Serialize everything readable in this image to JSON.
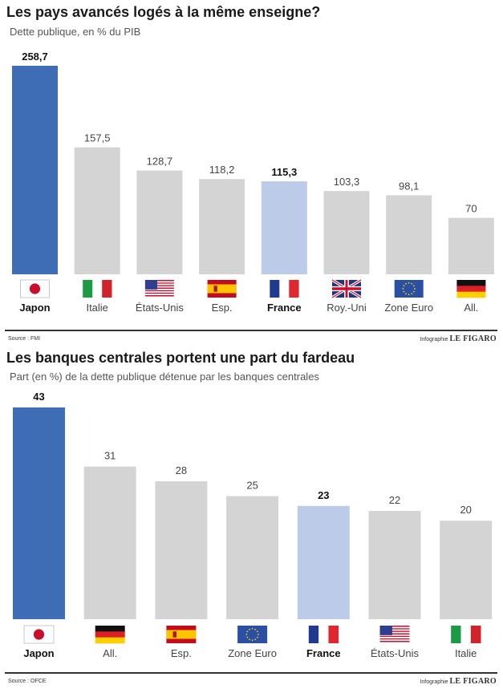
{
  "colors": {
    "highlight": "#3f6db5",
    "france": "#bccbe8",
    "other": "#d4d4d4"
  },
  "chart_data": [
    {
      "type": "bar",
      "title": "Les pays avancés logés à la même enseigne?",
      "subtitle": "Dette publique, en % du PIB",
      "categories": [
        "Japon",
        "Italie",
        "États-Unis",
        "Esp.",
        "France",
        "Roy.-Uni",
        "Zone Euro",
        "All."
      ],
      "flags": [
        "jp-flag-icon",
        "it-flag-icon",
        "us-flag-icon",
        "es-flag-icon",
        "fr-flag-icon",
        "uk-flag-icon",
        "eu-flag-icon",
        "de-flag-icon"
      ],
      "values": [
        258.7,
        157.5,
        128.7,
        118.2,
        115.3,
        103.3,
        98.1,
        70
      ],
      "value_labels": [
        "258,7",
        "157,5",
        "128,7",
        "118,2",
        "115,3",
        "103,3",
        "98,1",
        "70"
      ],
      "bold": [
        true,
        false,
        false,
        false,
        true,
        false,
        false,
        false
      ],
      "bar_style": [
        "highlight",
        "other",
        "other",
        "other",
        "france",
        "other",
        "other",
        "other"
      ],
      "ylim": [
        0,
        258.7
      ],
      "grid": false,
      "source": "Source : FMI",
      "credit_prefix": "Infographie",
      "credit_brand": "LE FIGARO"
    },
    {
      "type": "bar",
      "title": "Les banques centrales portent une part du fardeau",
      "subtitle": "Part (en %) de la dette publique détenue par les banques centrales",
      "categories": [
        "Japon",
        "All.",
        "Esp.",
        "Zone Euro",
        "France",
        "États-Unis",
        "Italie"
      ],
      "flags": [
        "jp-flag-icon",
        "de-flag-icon",
        "es-flag-icon",
        "eu-flag-icon",
        "fr-flag-icon",
        "us-flag-icon",
        "it-flag-icon"
      ],
      "values": [
        43,
        31,
        28,
        25,
        23,
        22,
        20
      ],
      "value_labels": [
        "43",
        "31",
        "28",
        "25",
        "23",
        "22",
        "20"
      ],
      "bold": [
        true,
        false,
        false,
        false,
        true,
        false,
        false
      ],
      "bar_style": [
        "highlight",
        "other",
        "other",
        "other",
        "france",
        "other",
        "other"
      ],
      "ylim": [
        0,
        43
      ],
      "grid": false,
      "source": "Source : OFCE",
      "credit_prefix": "Infographie",
      "credit_brand": "LE FIGARO"
    }
  ]
}
